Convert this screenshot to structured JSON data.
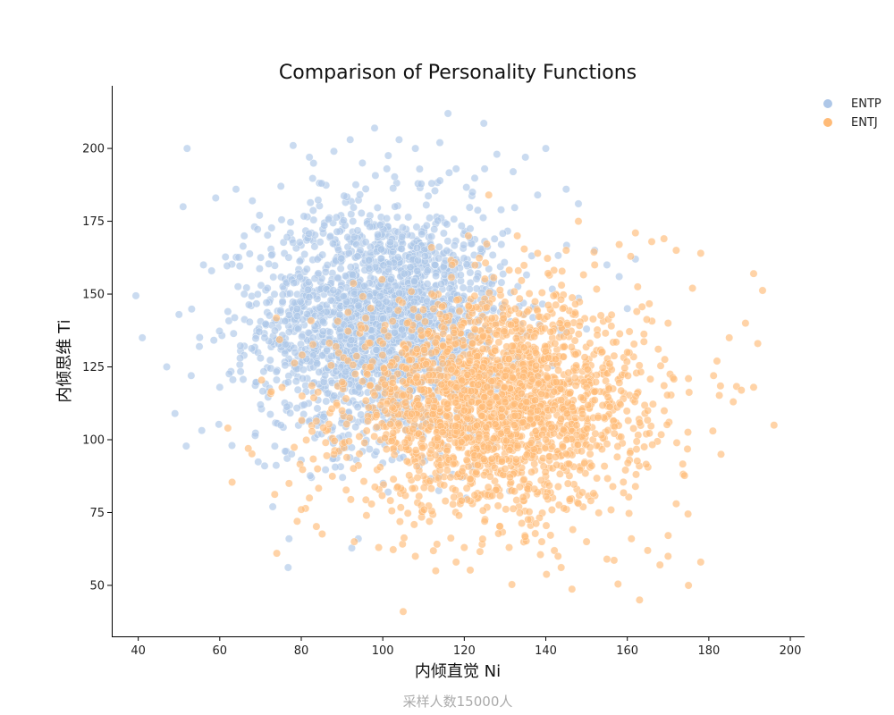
{
  "chart_data": {
    "type": "scatter",
    "title": "Comparison of Personality Functions",
    "xlabel": "内倾直觉 Ni",
    "ylabel": "内倾思维 Ti",
    "footnote": "采样人数15000人",
    "xlim": [
      33.5,
      203.5
    ],
    "ylim": [
      32.5,
      221.5
    ],
    "x_ticks": [
      40,
      60,
      80,
      100,
      120,
      140,
      160,
      180,
      200
    ],
    "y_ticks": [
      50,
      75,
      100,
      125,
      150,
      175,
      200
    ],
    "grid": false,
    "legend_position": "top-right",
    "series": [
      {
        "name": "ENTP",
        "color": "#aec7e8",
        "distribution": {
          "x_mean": 100,
          "x_sd": 15,
          "y_mean": 140,
          "y_sd": 20
        },
        "points": [
          [
            41,
            135
          ],
          [
            47,
            125
          ],
          [
            49,
            109
          ],
          [
            50,
            143
          ],
          [
            51,
            180
          ],
          [
            52,
            200
          ],
          [
            53,
            122
          ],
          [
            55,
            132
          ],
          [
            56,
            160
          ],
          [
            58,
            158
          ],
          [
            59,
            183
          ],
          [
            60,
            118
          ],
          [
            63,
            98
          ],
          [
            64,
            186
          ],
          [
            65,
            128
          ],
          [
            66,
            170
          ],
          [
            68,
            182
          ],
          [
            70,
            112
          ],
          [
            71,
            91
          ],
          [
            73,
            77
          ],
          [
            75,
            187
          ],
          [
            77,
            66
          ],
          [
            78,
            201
          ],
          [
            82,
            197
          ],
          [
            85,
            188
          ],
          [
            88,
            199
          ],
          [
            92,
            203
          ],
          [
            94,
            66
          ],
          [
            95,
            195
          ],
          [
            98,
            207
          ],
          [
            101,
            193
          ],
          [
            104,
            203
          ],
          [
            108,
            200
          ],
          [
            112,
            188
          ],
          [
            114,
            202
          ],
          [
            116,
            212
          ],
          [
            118,
            193
          ],
          [
            122,
            185
          ],
          [
            125,
            193
          ],
          [
            128,
            198
          ],
          [
            132,
            192
          ],
          [
            135,
            197
          ],
          [
            138,
            184
          ],
          [
            140,
            200
          ],
          [
            145,
            186
          ],
          [
            148,
            181
          ],
          [
            152,
            165
          ],
          [
            155,
            160
          ],
          [
            158,
            156
          ],
          [
            160,
            145
          ],
          [
            162,
            162
          ],
          [
            150,
            138
          ],
          [
            146,
            120
          ],
          [
            142,
            104
          ],
          [
            138,
            100
          ],
          [
            130,
            108
          ],
          [
            125,
            112
          ],
          [
            120,
            118
          ],
          [
            115,
            98
          ],
          [
            110,
            106
          ],
          [
            105,
            94
          ],
          [
            100,
            92
          ],
          [
            95,
            96
          ],
          [
            90,
            97
          ],
          [
            85,
            102
          ],
          [
            80,
            93
          ],
          [
            75,
            105
          ],
          [
            70,
            128
          ],
          [
            66,
            150
          ],
          [
            62,
            144
          ]
        ]
      },
      {
        "name": "ENTJ",
        "color": "#ffbb78",
        "distribution": {
          "x_mean": 128,
          "x_sd": 18,
          "y_mean": 112,
          "y_sd": 18
        },
        "points": [
          [
            62,
            104
          ],
          [
            67,
            97
          ],
          [
            74,
            61
          ],
          [
            77,
            85
          ],
          [
            80,
            76
          ],
          [
            88,
            95
          ],
          [
            93,
            65
          ],
          [
            96,
            74
          ],
          [
            99,
            63
          ],
          [
            105,
            41
          ],
          [
            108,
            60
          ],
          [
            113,
            55
          ],
          [
            118,
            58
          ],
          [
            120,
            63
          ],
          [
            125,
            72
          ],
          [
            131,
            63
          ],
          [
            139,
            65
          ],
          [
            143,
            60
          ],
          [
            150,
            65
          ],
          [
            155,
            59
          ],
          [
            161,
            66
          ],
          [
            163,
            45
          ],
          [
            165,
            62
          ],
          [
            168,
            57
          ],
          [
            170,
            60
          ],
          [
            172,
            78
          ],
          [
            175,
            50
          ],
          [
            178,
            58
          ],
          [
            181,
            103
          ],
          [
            183,
            95
          ],
          [
            186,
            113
          ],
          [
            188,
            117
          ],
          [
            191,
            118
          ],
          [
            192,
            133
          ],
          [
            196,
            105
          ],
          [
            191,
            157
          ],
          [
            189,
            140
          ],
          [
            185,
            135
          ],
          [
            182,
            127
          ],
          [
            178,
            164
          ],
          [
            176,
            152
          ],
          [
            172,
            165
          ],
          [
            169,
            169
          ],
          [
            166,
            168
          ],
          [
            162,
            171
          ],
          [
            158,
            167
          ],
          [
            152,
            160
          ],
          [
            148,
            175
          ],
          [
            145,
            165
          ],
          [
            138,
            164
          ],
          [
            133,
            170
          ],
          [
            126,
            184
          ],
          [
            121,
            170
          ],
          [
            117,
            160
          ],
          [
            112,
            150
          ],
          [
            106,
            140
          ],
          [
            100,
            133
          ],
          [
            95,
            120
          ],
          [
            90,
            110
          ],
          [
            86,
            99
          ],
          [
            84,
            90
          ],
          [
            82,
            80
          ],
          [
            79,
            72
          ],
          [
            130,
            90
          ],
          [
            140,
            100
          ],
          [
            150,
            118
          ],
          [
            160,
            130
          ],
          [
            170,
            140
          ],
          [
            175,
            121
          ],
          [
            165,
            110
          ]
        ]
      }
    ]
  }
}
